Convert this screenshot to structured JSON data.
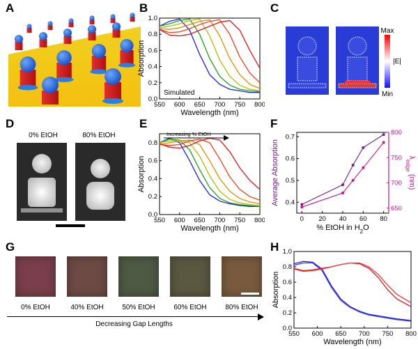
{
  "panels": {
    "A": "A",
    "B": "B",
    "C": "C",
    "D": "D",
    "E": "E",
    "F": "F",
    "G": "G",
    "H": "H"
  },
  "colors": {
    "curves": [
      "#1f1fd8",
      "#1aa01a",
      "#b8b800",
      "#e08a00",
      "#e8401a",
      "#d81818"
    ],
    "magenta": "#c2188f",
    "purple": "#6a1f8a",
    "field_max": "#ff0000",
    "field_min": "#1010ff"
  },
  "panelB": {
    "ylabel": "Absorption",
    "xlabel": "Wavelength (nm)",
    "annotation": "Simulated"
  },
  "panelC": {
    "max": "Max",
    "min": "Min",
    "field": "|E|"
  },
  "panelD": {
    "label_left": "0% EtOH",
    "label_right": "80% EtOH"
  },
  "panelE": {
    "ylabel": "Absorption",
    "xlabel": "Wavelength (nm)",
    "arrow_label": "Increasing % EtOH"
  },
  "panelF": {
    "ylabel_left": "Average Absorption",
    "ylabel_right_main": "λ",
    "ylabel_right_sub": "edge",
    "ylabel_right_unit": " (nm)",
    "xlabel_main": "% EtOH in H",
    "xlabel_sub": "2",
    "xlabel_end": "O"
  },
  "panelG": {
    "swatches": [
      {
        "label": "0% EtOH",
        "color": "#7a3f4a"
      },
      {
        "label": "40% EtOH",
        "color": "#6e4a44"
      },
      {
        "label": "50% EtOH",
        "color": "#4e5a44"
      },
      {
        "label": "60% EtOH",
        "color": "#5a5840"
      },
      {
        "label": "80% EtOH",
        "color": "#7a5a3e"
      }
    ],
    "arrow_label": "Decreasing Gap Lengths"
  },
  "panelH": {
    "ylabel": "Absorption",
    "xlabel": "Wavelength (nm)"
  },
  "chart_data": [
    {
      "panel": "B",
      "type": "line",
      "xlabel": "Wavelength (nm)",
      "ylabel": "Absorption",
      "xlim": [
        550,
        800
      ],
      "ylim": [
        0.0,
        1.0
      ],
      "xticks": [
        550,
        600,
        650,
        700,
        750,
        800
      ],
      "yticks": [
        0.0,
        0.2,
        0.4,
        0.6,
        0.8,
        1.0
      ],
      "series": [
        {
          "color": "#1f1fd8",
          "x": [
            550,
            575,
            600,
            625,
            650,
            675,
            700,
            725,
            750,
            775,
            800
          ],
          "y": [
            0.9,
            0.96,
            0.99,
            0.85,
            0.55,
            0.3,
            0.18,
            0.12,
            0.1,
            0.08,
            0.08
          ]
        },
        {
          "color": "#1aa01a",
          "x": [
            550,
            575,
            600,
            625,
            650,
            675,
            700,
            725,
            750,
            775,
            800
          ],
          "y": [
            0.9,
            0.93,
            0.97,
            0.99,
            0.8,
            0.5,
            0.28,
            0.17,
            0.12,
            0.1,
            0.09
          ]
        },
        {
          "color": "#b8b800",
          "x": [
            550,
            575,
            600,
            625,
            650,
            675,
            700,
            725,
            750,
            775,
            800
          ],
          "y": [
            0.88,
            0.9,
            0.93,
            0.97,
            0.99,
            0.78,
            0.48,
            0.28,
            0.17,
            0.12,
            0.1
          ]
        },
        {
          "color": "#e08a00",
          "x": [
            550,
            575,
            600,
            625,
            650,
            675,
            700,
            725,
            750,
            775,
            800
          ],
          "y": [
            0.87,
            0.86,
            0.88,
            0.92,
            0.96,
            0.98,
            0.78,
            0.5,
            0.3,
            0.18,
            0.13
          ]
        },
        {
          "color": "#e8401a",
          "x": [
            550,
            575,
            600,
            625,
            650,
            675,
            700,
            725,
            750,
            775,
            800
          ],
          "y": [
            0.86,
            0.82,
            0.83,
            0.87,
            0.92,
            0.96,
            0.98,
            0.8,
            0.52,
            0.32,
            0.2
          ]
        },
        {
          "color": "#d81818",
          "x": [
            550,
            575,
            600,
            625,
            650,
            675,
            700,
            725,
            750,
            775,
            800
          ],
          "y": [
            0.86,
            0.79,
            0.78,
            0.8,
            0.85,
            0.9,
            0.95,
            0.97,
            0.85,
            0.6,
            0.38
          ]
        }
      ]
    },
    {
      "panel": "E",
      "type": "line",
      "xlabel": "Wavelength (nm)",
      "ylabel": "Absorption",
      "xlim": [
        550,
        800
      ],
      "ylim": [
        0.0,
        0.9
      ],
      "xticks": [
        550,
        600,
        650,
        700,
        750,
        800
      ],
      "yticks": [
        0.0,
        0.2,
        0.4,
        0.6,
        0.8
      ],
      "series": [
        {
          "color": "#1f1fd8",
          "x": [
            550,
            575,
            600,
            625,
            650,
            675,
            700,
            725,
            750,
            775,
            800
          ],
          "y": [
            0.8,
            0.85,
            0.8,
            0.6,
            0.38,
            0.22,
            0.15,
            0.12,
            0.1,
            0.09,
            0.09
          ]
        },
        {
          "color": "#1aa01a",
          "x": [
            550,
            575,
            600,
            625,
            650,
            675,
            700,
            725,
            750,
            775,
            800
          ],
          "y": [
            0.8,
            0.84,
            0.83,
            0.72,
            0.5,
            0.3,
            0.18,
            0.13,
            0.11,
            0.1,
            0.09
          ]
        },
        {
          "color": "#b8b800",
          "x": [
            550,
            575,
            600,
            625,
            650,
            675,
            700,
            725,
            750,
            775,
            800
          ],
          "y": [
            0.8,
            0.82,
            0.83,
            0.8,
            0.65,
            0.43,
            0.26,
            0.17,
            0.13,
            0.11,
            0.1
          ]
        },
        {
          "color": "#e08a00",
          "x": [
            550,
            575,
            600,
            625,
            650,
            675,
            700,
            725,
            750,
            775,
            800
          ],
          "y": [
            0.78,
            0.8,
            0.82,
            0.83,
            0.78,
            0.6,
            0.4,
            0.26,
            0.18,
            0.14,
            0.12
          ]
        },
        {
          "color": "#e8401a",
          "x": [
            550,
            575,
            600,
            625,
            650,
            675,
            700,
            725,
            750,
            775,
            800
          ],
          "y": [
            0.78,
            0.77,
            0.78,
            0.82,
            0.84,
            0.8,
            0.62,
            0.42,
            0.28,
            0.2,
            0.16
          ]
        },
        {
          "color": "#d81818",
          "x": [
            550,
            575,
            600,
            625,
            650,
            675,
            700,
            725,
            750,
            775,
            800
          ],
          "y": [
            0.79,
            0.75,
            0.74,
            0.77,
            0.82,
            0.85,
            0.83,
            0.7,
            0.52,
            0.38,
            0.28
          ]
        }
      ]
    },
    {
      "panel": "F",
      "type": "line",
      "xlabel": "% EtOH in H2O",
      "xlim": [
        -5,
        85
      ],
      "ylim_left": [
        0.35,
        0.72
      ],
      "ylim_right": [
        640,
        800
      ],
      "xticks": [
        0,
        20,
        40,
        60,
        80
      ],
      "yticks_left": [
        0.4,
        0.5,
        0.6,
        0.7
      ],
      "yticks_right": [
        650,
        700,
        750,
        800
      ],
      "series": [
        {
          "axis": "left",
          "color": "#6a1f8a",
          "x": [
            0,
            40,
            50,
            60,
            80
          ],
          "y": [
            0.39,
            0.48,
            0.57,
            0.65,
            0.71
          ]
        },
        {
          "axis": "right",
          "color": "#c2188f",
          "x": [
            0,
            40,
            50,
            60,
            80
          ],
          "y": [
            652,
            680,
            705,
            730,
            780
          ]
        }
      ]
    },
    {
      "panel": "H",
      "type": "line",
      "xlabel": "Wavelength (nm)",
      "ylabel": "Absorption",
      "xlim": [
        550,
        800
      ],
      "ylim": [
        0.0,
        1.0
      ],
      "xticks": [
        550,
        600,
        650,
        700,
        750,
        800
      ],
      "yticks": [
        0.0,
        0.2,
        0.4,
        0.6,
        0.8,
        1.0
      ],
      "series": [
        {
          "color": "#1f1fd8",
          "x": [
            550,
            570,
            590,
            610,
            630,
            650,
            670,
            690,
            710,
            730,
            750,
            770,
            800
          ],
          "y": [
            0.84,
            0.87,
            0.86,
            0.77,
            0.55,
            0.38,
            0.28,
            0.22,
            0.18,
            0.16,
            0.14,
            0.12,
            0.1
          ]
        },
        {
          "color": "#3a3ae8",
          "x": [
            550,
            570,
            590,
            610,
            630,
            650,
            670,
            690,
            710,
            730,
            750,
            770,
            800
          ],
          "y": [
            0.82,
            0.85,
            0.85,
            0.75,
            0.53,
            0.36,
            0.27,
            0.21,
            0.17,
            0.15,
            0.13,
            0.11,
            0.09
          ]
        },
        {
          "color": "#d81818",
          "x": [
            550,
            570,
            590,
            610,
            630,
            650,
            670,
            690,
            710,
            730,
            750,
            770,
            800
          ],
          "y": [
            0.78,
            0.75,
            0.76,
            0.78,
            0.8,
            0.83,
            0.85,
            0.84,
            0.78,
            0.66,
            0.5,
            0.38,
            0.28
          ]
        },
        {
          "color": "#e83a3a",
          "x": [
            550,
            570,
            590,
            610,
            630,
            650,
            670,
            690,
            710,
            730,
            750,
            770,
            800
          ],
          "y": [
            0.77,
            0.74,
            0.75,
            0.77,
            0.8,
            0.83,
            0.85,
            0.85,
            0.8,
            0.7,
            0.56,
            0.44,
            0.33
          ]
        }
      ]
    }
  ]
}
